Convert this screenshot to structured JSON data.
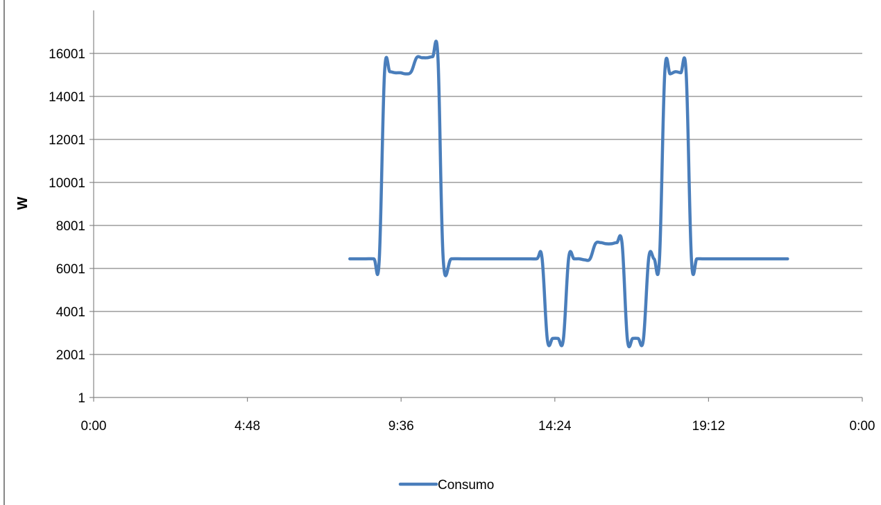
{
  "chart_data": {
    "type": "line",
    "title": "",
    "xlabel": "",
    "ylabel": "W",
    "x_unit": "time_of_day",
    "xlim": [
      "0:00",
      "24:00"
    ],
    "ylim": [
      1,
      18001
    ],
    "x_ticks": [
      "0:00",
      "4:48",
      "9:36",
      "14:24",
      "19:12",
      "0:00"
    ],
    "y_ticks": [
      "1",
      "2001",
      "4001",
      "6001",
      "8001",
      "10001",
      "12001",
      "14001",
      "16001"
    ],
    "grid": "horizontal",
    "legend_position": "bottom",
    "colors": {
      "series": "#4A7EBB",
      "grid": "#868686",
      "axis": "#868686"
    },
    "series": [
      {
        "name": "Consumo",
        "x": [
          "8:00",
          "8:15",
          "8:30",
          "8:45",
          "8:55",
          "9:05",
          "9:15",
          "9:25",
          "9:35",
          "9:45",
          "9:55",
          "10:05",
          "10:15",
          "10:25",
          "10:35",
          "10:45",
          "10:55",
          "11:10",
          "11:30",
          "12:00",
          "12:30",
          "13:00",
          "13:30",
          "13:50",
          "14:00",
          "14:10",
          "14:20",
          "14:30",
          "14:40",
          "14:50",
          "15:00",
          "15:10",
          "15:20",
          "15:30",
          "15:40",
          "15:50",
          "16:00",
          "16:10",
          "16:20",
          "16:30",
          "16:40",
          "16:50",
          "17:00",
          "17:10",
          "17:20",
          "17:30",
          "17:40",
          "17:50",
          "18:00",
          "18:10",
          "18:20",
          "18:30",
          "18:40",
          "18:50",
          "19:00",
          "19:10",
          "19:20",
          "19:30",
          "19:40",
          "19:50",
          "20:00",
          "20:10",
          "20:20",
          "20:40",
          "21:00",
          "21:20",
          "21:40"
        ],
        "y": [
          6450,
          6450,
          6450,
          6450,
          6400,
          15100,
          15150,
          15100,
          15100,
          15050,
          15150,
          15800,
          15800,
          15800,
          15850,
          15800,
          6400,
          6450,
          6450,
          6450,
          6450,
          6450,
          6450,
          6450,
          6500,
          2700,
          2750,
          2750,
          2700,
          6500,
          6450,
          6450,
          6400,
          6450,
          7150,
          7200,
          7150,
          7150,
          7200,
          7150,
          2700,
          2750,
          2750,
          2700,
          6500,
          6450,
          6400,
          15100,
          15050,
          15150,
          15100,
          15100,
          6400,
          6450,
          6450,
          6450,
          6450,
          6450,
          6450,
          6450,
          6450,
          6450,
          6450,
          6450,
          6450,
          6450,
          6450
        ]
      }
    ]
  }
}
